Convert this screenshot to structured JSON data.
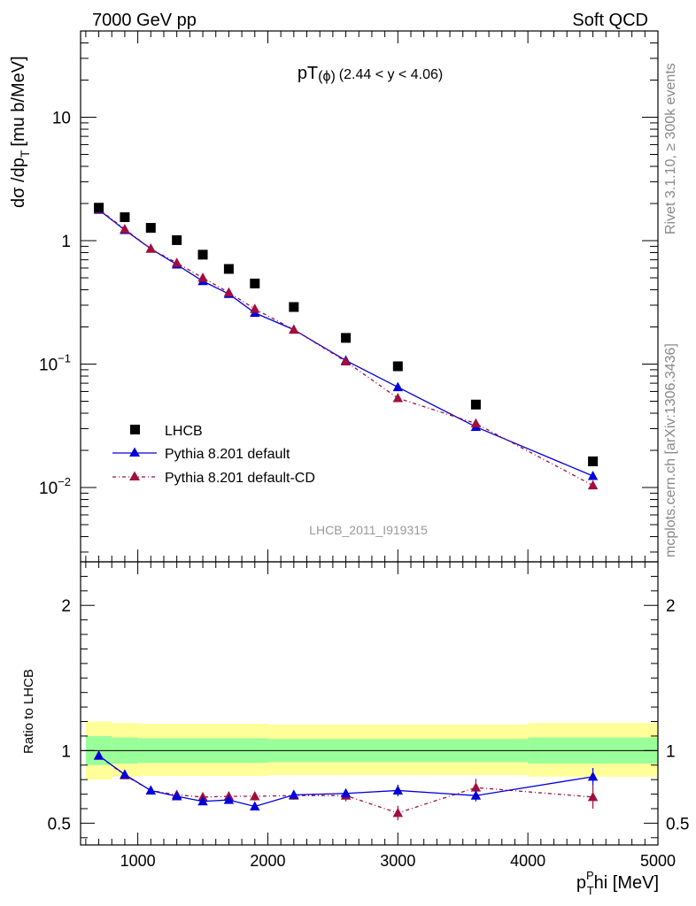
{
  "header": {
    "left": "7000 GeV pp",
    "right": "Soft QCD"
  },
  "side": {
    "rivet": "Rivet 3.1.10, ≥ 300k events",
    "mcplots": "mcplots.cern.ch [arXiv:1306.3436]"
  },
  "chart_data": {
    "type": "scatter",
    "title_main": "pT",
    "title_phi": "(ϕ)",
    "title_range": "(2.44 < y < 4.06)",
    "watermark": "LHCB_2011_I919315",
    "ylabel_main": "dσ /dp",
    "ylabel_sub": "T",
    "ylabel_unit": "[mu b/MeV]",
    "ylabel_ratio": "Ratio to LHCB",
    "xlabel_main": "p",
    "xlabel_sup": "P",
    "xlabel_sub": "T",
    "xlabel_rest": "hi [MeV]",
    "xlim": [
      560,
      5000
    ],
    "ylim_main": [
      0.0025,
      50
    ],
    "ylim_ratio": [
      0.35,
      2.3
    ],
    "x_ticks": [
      1000,
      2000,
      3000,
      4000,
      5000
    ],
    "y_ticks_main": [
      {
        "value": 0.01,
        "base": "10",
        "exp": "−2"
      },
      {
        "value": 0.1,
        "base": "10",
        "exp": "−1"
      },
      {
        "value": 1,
        "base": "1",
        "exp": ""
      },
      {
        "value": 10,
        "base": "10",
        "exp": ""
      }
    ],
    "y_ticks_ratio": [
      0.5,
      1,
      2
    ],
    "x": [
      700,
      900,
      1100,
      1300,
      1500,
      1700,
      1900,
      2200,
      2600,
      3000,
      3600,
      4500
    ],
    "series": [
      {
        "name": "LHCB",
        "color": "#000000",
        "marker": "square",
        "values": [
          1.85,
          1.55,
          1.27,
          1.01,
          0.77,
          0.59,
          0.45,
          0.29,
          0.163,
          0.096,
          0.047,
          0.0163
        ]
      },
      {
        "name": "Pythia 8.201 default",
        "color": "#0000dd",
        "marker": "triangle",
        "line": "solid",
        "values": [
          1.78,
          1.22,
          0.86,
          0.64,
          0.47,
          0.37,
          0.26,
          0.19,
          0.107,
          0.065,
          0.031,
          0.0124
        ],
        "ratio": [
          0.965,
          0.835,
          0.725,
          0.685,
          0.65,
          0.66,
          0.615,
          0.695,
          0.705,
          0.725,
          0.69,
          0.82
        ],
        "ratio_err": [
          0.01,
          0.012,
          0.012,
          0.015,
          0.015,
          0.02,
          0.025,
          0.025,
          0.03,
          0.04,
          0.04,
          0.06
        ]
      },
      {
        "name": "Pythia 8.201 default-CD",
        "color": "#a0103a",
        "marker": "triangle",
        "line": "dashdot",
        "values": [
          1.8,
          1.24,
          0.86,
          0.66,
          0.5,
          0.38,
          0.28,
          0.19,
          0.105,
          0.053,
          0.033,
          0.0104
        ],
        "ratio": [
          0.965,
          0.83,
          0.725,
          0.695,
          0.68,
          0.685,
          0.685,
          0.69,
          0.69,
          0.57,
          0.745,
          0.68
        ],
        "ratio_err": [
          0.01,
          0.012,
          0.015,
          0.02,
          0.025,
          0.025,
          0.03,
          0.03,
          0.04,
          0.05,
          0.06,
          0.08
        ]
      }
    ],
    "bands": {
      "yellow_color": "#ffff99",
      "green_color": "#99ff99",
      "segments": [
        {
          "x0": 600,
          "x1": 800,
          "yellow": [
            0.8,
            1.2
          ],
          "green": [
            0.9,
            1.1
          ]
        },
        {
          "x0": 800,
          "x1": 1000,
          "yellow": [
            0.82,
            1.19
          ],
          "green": [
            0.91,
            1.09
          ]
        },
        {
          "x0": 1000,
          "x1": 2000,
          "yellow": [
            0.825,
            1.185
          ],
          "green": [
            0.915,
            1.085
          ]
        },
        {
          "x0": 2000,
          "x1": 4000,
          "yellow": [
            0.83,
            1.18
          ],
          "green": [
            0.92,
            1.08
          ]
        },
        {
          "x0": 4000,
          "x1": 5000,
          "yellow": [
            0.82,
            1.19
          ],
          "green": [
            0.91,
            1.09
          ]
        }
      ]
    }
  }
}
